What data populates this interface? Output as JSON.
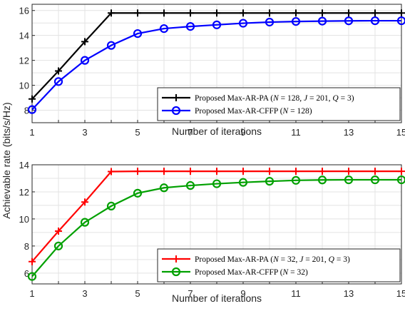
{
  "shared_ylabel": "Achievable rate (bits/s/Hz)",
  "chart_data": [
    {
      "type": "line",
      "xlabel": "Number of iterations",
      "x": [
        1,
        2,
        3,
        4,
        5,
        6,
        7,
        8,
        9,
        10,
        11,
        12,
        13,
        14,
        15
      ],
      "xlim": [
        1,
        15
      ],
      "ylim": [
        7,
        16.5
      ],
      "xticks": [
        1,
        3,
        5,
        7,
        9,
        11,
        13,
        15
      ],
      "yticks": [
        8,
        10,
        12,
        14,
        16
      ],
      "grid": true,
      "legend_position": "bottom-right",
      "series": [
        {
          "name": "Proposed Max-AR-PA (N = 128, J = 201, Q = 3)",
          "color": "#000000",
          "marker": "plus",
          "values": [
            8.9,
            11.15,
            13.5,
            15.8,
            15.8,
            15.8,
            15.8,
            15.8,
            15.8,
            15.8,
            15.8,
            15.8,
            15.8,
            15.8,
            15.8
          ]
        },
        {
          "name": "Proposed Max-AR-CFFP (N = 128)",
          "color": "#0000ff",
          "marker": "circle",
          "values": [
            8.05,
            10.3,
            12.0,
            13.2,
            14.15,
            14.55,
            14.72,
            14.85,
            14.98,
            15.07,
            15.12,
            15.15,
            15.17,
            15.18,
            15.18
          ]
        }
      ]
    },
    {
      "type": "line",
      "xlabel": "Number of iterations",
      "x": [
        1,
        2,
        3,
        4,
        5,
        6,
        7,
        8,
        9,
        10,
        11,
        12,
        13,
        14,
        15
      ],
      "xlim": [
        1,
        15
      ],
      "ylim": [
        5.2,
        14
      ],
      "xticks": [
        1,
        3,
        5,
        7,
        9,
        11,
        13,
        15
      ],
      "yticks": [
        6,
        8,
        10,
        12,
        14
      ],
      "grid": true,
      "legend_position": "bottom-right",
      "series": [
        {
          "name": "Proposed Max-AR-PA (N = 32, J = 201, Q = 3)",
          "color": "#ff0000",
          "marker": "plus",
          "values": [
            6.85,
            9.1,
            11.25,
            13.5,
            13.52,
            13.52,
            13.52,
            13.52,
            13.52,
            13.52,
            13.52,
            13.52,
            13.52,
            13.52,
            13.52
          ]
        },
        {
          "name": "Proposed Max-AR-CFFP (N = 32)",
          "color": "#00a000",
          "marker": "circle",
          "values": [
            5.75,
            8.0,
            9.75,
            10.95,
            11.9,
            12.3,
            12.47,
            12.6,
            12.7,
            12.78,
            12.85,
            12.88,
            12.89,
            12.89,
            12.89
          ]
        }
      ]
    }
  ]
}
